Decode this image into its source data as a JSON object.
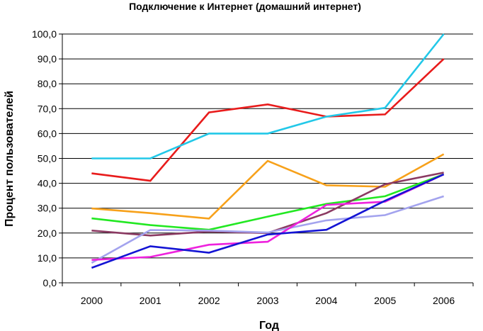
{
  "chart_data": {
    "type": "line",
    "title": "Подключение к Интернет (домашний интернет)",
    "xlabel": "Год",
    "ylabel": "Процент пользователей",
    "categories": [
      "2000",
      "2001",
      "2002",
      "2003",
      "2004",
      "2005",
      "2006"
    ],
    "ylim": [
      0,
      100
    ],
    "yticks": [
      "0,0",
      "10,0",
      "20,0",
      "30,0",
      "40,0",
      "50,0",
      "60,0",
      "70,0",
      "80,0",
      "90,0",
      "100,0"
    ],
    "grid": "horizontal",
    "legend": "none",
    "series": [
      {
        "color": "#e81b1b",
        "values": [
          44.0,
          41.0,
          68.5,
          71.7,
          66.8,
          67.7,
          90.0
        ]
      },
      {
        "color": "#22c8e8",
        "values": [
          50.0,
          50.0,
          60.0,
          60.0,
          66.8,
          70.3,
          100.0
        ]
      },
      {
        "color": "#f7a11a",
        "values": [
          29.9,
          28.0,
          25.8,
          49.0,
          39.2,
          38.6,
          51.7
        ]
      },
      {
        "color": "#22e822",
        "values": [
          25.9,
          23.2,
          21.3,
          26.6,
          31.7,
          34.8,
          43.6
        ]
      },
      {
        "color": "#8b3a62",
        "values": [
          21.0,
          19.0,
          20.6,
          20.0,
          28.0,
          39.6,
          44.3
        ]
      },
      {
        "color": "#a3a3ee",
        "values": [
          8.0,
          21.2,
          21.0,
          20.2,
          25.1,
          27.2,
          34.8
        ]
      },
      {
        "color": "#ee22dd",
        "values": [
          9.2,
          10.4,
          15.3,
          16.5,
          31.3,
          32.6,
          43.6
        ]
      },
      {
        "color": "#1414d4",
        "values": [
          6.0,
          14.7,
          12.1,
          19.4,
          21.3,
          33.0,
          43.6
        ]
      }
    ]
  }
}
